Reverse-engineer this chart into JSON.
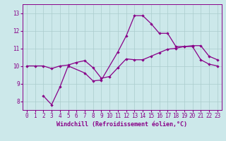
{
  "title": "",
  "xlabel": "Windchill (Refroidissement éolien,°C)",
  "ylabel": "",
  "background_color": "#cce8ea",
  "grid_color": "#aacccc",
  "line_color": "#880088",
  "xlim": [
    -0.5,
    23.5
  ],
  "ylim": [
    7.5,
    13.5
  ],
  "xticks": [
    0,
    1,
    2,
    3,
    4,
    5,
    6,
    7,
    8,
    9,
    10,
    11,
    12,
    13,
    14,
    15,
    16,
    17,
    18,
    19,
    20,
    21,
    22,
    23
  ],
  "yticks": [
    8,
    9,
    10,
    11,
    12,
    13
  ],
  "line1_x": [
    0,
    1,
    2,
    3,
    4,
    5,
    6,
    7,
    8,
    9,
    10,
    11,
    12,
    13,
    14,
    15,
    16,
    17,
    18,
    19,
    20,
    21,
    22,
    23
  ],
  "line1_y": [
    10.0,
    10.0,
    10.0,
    9.85,
    10.0,
    10.05,
    10.2,
    10.3,
    9.9,
    9.3,
    9.4,
    9.9,
    10.4,
    10.35,
    10.35,
    10.55,
    10.75,
    10.95,
    11.0,
    11.1,
    11.1,
    10.35,
    10.1,
    10.0
  ],
  "line2_x": [
    2,
    3,
    4,
    5,
    7,
    8,
    9,
    11,
    12,
    13,
    14,
    15,
    16,
    17,
    18,
    19,
    20,
    21,
    22,
    23
  ],
  "line2_y": [
    8.3,
    7.8,
    8.8,
    10.0,
    9.6,
    9.15,
    9.2,
    10.8,
    11.7,
    12.85,
    12.85,
    12.4,
    11.85,
    11.85,
    11.1,
    11.1,
    11.15,
    11.15,
    10.55,
    10.35
  ]
}
